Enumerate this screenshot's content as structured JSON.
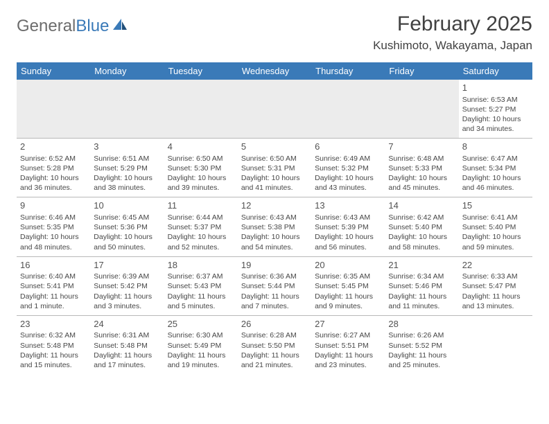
{
  "brand": {
    "part1": "General",
    "part2": "Blue"
  },
  "title": "February 2025",
  "location": "Kushimoto, Wakayama, Japan",
  "colors": {
    "header_bg": "#3a7ab8",
    "header_text": "#ffffff",
    "border": "#b8b8b8",
    "empty_bg": "#ececec",
    "text": "#464646",
    "title_text": "#414141"
  },
  "weekdays": [
    "Sunday",
    "Monday",
    "Tuesday",
    "Wednesday",
    "Thursday",
    "Friday",
    "Saturday"
  ],
  "weeks": [
    [
      null,
      null,
      null,
      null,
      null,
      null,
      {
        "d": "1",
        "sr": "Sunrise: 6:53 AM",
        "ss": "Sunset: 5:27 PM",
        "dl": "Daylight: 10 hours and 34 minutes."
      }
    ],
    [
      {
        "d": "2",
        "sr": "Sunrise: 6:52 AM",
        "ss": "Sunset: 5:28 PM",
        "dl": "Daylight: 10 hours and 36 minutes."
      },
      {
        "d": "3",
        "sr": "Sunrise: 6:51 AM",
        "ss": "Sunset: 5:29 PM",
        "dl": "Daylight: 10 hours and 38 minutes."
      },
      {
        "d": "4",
        "sr": "Sunrise: 6:50 AM",
        "ss": "Sunset: 5:30 PM",
        "dl": "Daylight: 10 hours and 39 minutes."
      },
      {
        "d": "5",
        "sr": "Sunrise: 6:50 AM",
        "ss": "Sunset: 5:31 PM",
        "dl": "Daylight: 10 hours and 41 minutes."
      },
      {
        "d": "6",
        "sr": "Sunrise: 6:49 AM",
        "ss": "Sunset: 5:32 PM",
        "dl": "Daylight: 10 hours and 43 minutes."
      },
      {
        "d": "7",
        "sr": "Sunrise: 6:48 AM",
        "ss": "Sunset: 5:33 PM",
        "dl": "Daylight: 10 hours and 45 minutes."
      },
      {
        "d": "8",
        "sr": "Sunrise: 6:47 AM",
        "ss": "Sunset: 5:34 PM",
        "dl": "Daylight: 10 hours and 46 minutes."
      }
    ],
    [
      {
        "d": "9",
        "sr": "Sunrise: 6:46 AM",
        "ss": "Sunset: 5:35 PM",
        "dl": "Daylight: 10 hours and 48 minutes."
      },
      {
        "d": "10",
        "sr": "Sunrise: 6:45 AM",
        "ss": "Sunset: 5:36 PM",
        "dl": "Daylight: 10 hours and 50 minutes."
      },
      {
        "d": "11",
        "sr": "Sunrise: 6:44 AM",
        "ss": "Sunset: 5:37 PM",
        "dl": "Daylight: 10 hours and 52 minutes."
      },
      {
        "d": "12",
        "sr": "Sunrise: 6:43 AM",
        "ss": "Sunset: 5:38 PM",
        "dl": "Daylight: 10 hours and 54 minutes."
      },
      {
        "d": "13",
        "sr": "Sunrise: 6:43 AM",
        "ss": "Sunset: 5:39 PM",
        "dl": "Daylight: 10 hours and 56 minutes."
      },
      {
        "d": "14",
        "sr": "Sunrise: 6:42 AM",
        "ss": "Sunset: 5:40 PM",
        "dl": "Daylight: 10 hours and 58 minutes."
      },
      {
        "d": "15",
        "sr": "Sunrise: 6:41 AM",
        "ss": "Sunset: 5:40 PM",
        "dl": "Daylight: 10 hours and 59 minutes."
      }
    ],
    [
      {
        "d": "16",
        "sr": "Sunrise: 6:40 AM",
        "ss": "Sunset: 5:41 PM",
        "dl": "Daylight: 11 hours and 1 minute."
      },
      {
        "d": "17",
        "sr": "Sunrise: 6:39 AM",
        "ss": "Sunset: 5:42 PM",
        "dl": "Daylight: 11 hours and 3 minutes."
      },
      {
        "d": "18",
        "sr": "Sunrise: 6:37 AM",
        "ss": "Sunset: 5:43 PM",
        "dl": "Daylight: 11 hours and 5 minutes."
      },
      {
        "d": "19",
        "sr": "Sunrise: 6:36 AM",
        "ss": "Sunset: 5:44 PM",
        "dl": "Daylight: 11 hours and 7 minutes."
      },
      {
        "d": "20",
        "sr": "Sunrise: 6:35 AM",
        "ss": "Sunset: 5:45 PM",
        "dl": "Daylight: 11 hours and 9 minutes."
      },
      {
        "d": "21",
        "sr": "Sunrise: 6:34 AM",
        "ss": "Sunset: 5:46 PM",
        "dl": "Daylight: 11 hours and 11 minutes."
      },
      {
        "d": "22",
        "sr": "Sunrise: 6:33 AM",
        "ss": "Sunset: 5:47 PM",
        "dl": "Daylight: 11 hours and 13 minutes."
      }
    ],
    [
      {
        "d": "23",
        "sr": "Sunrise: 6:32 AM",
        "ss": "Sunset: 5:48 PM",
        "dl": "Daylight: 11 hours and 15 minutes."
      },
      {
        "d": "24",
        "sr": "Sunrise: 6:31 AM",
        "ss": "Sunset: 5:48 PM",
        "dl": "Daylight: 11 hours and 17 minutes."
      },
      {
        "d": "25",
        "sr": "Sunrise: 6:30 AM",
        "ss": "Sunset: 5:49 PM",
        "dl": "Daylight: 11 hours and 19 minutes."
      },
      {
        "d": "26",
        "sr": "Sunrise: 6:28 AM",
        "ss": "Sunset: 5:50 PM",
        "dl": "Daylight: 11 hours and 21 minutes."
      },
      {
        "d": "27",
        "sr": "Sunrise: 6:27 AM",
        "ss": "Sunset: 5:51 PM",
        "dl": "Daylight: 11 hours and 23 minutes."
      },
      {
        "d": "28",
        "sr": "Sunrise: 6:26 AM",
        "ss": "Sunset: 5:52 PM",
        "dl": "Daylight: 11 hours and 25 minutes."
      },
      null
    ]
  ]
}
